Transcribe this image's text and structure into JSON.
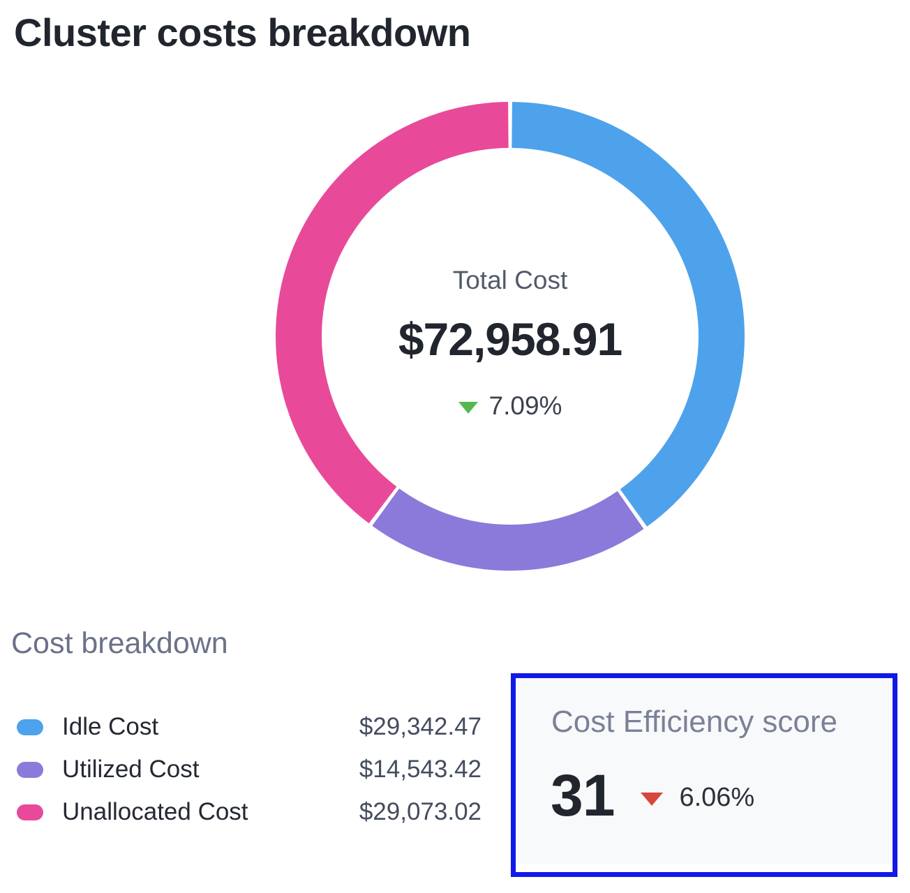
{
  "page": {
    "title": "Cluster costs breakdown",
    "background": "#ffffff"
  },
  "chart_data": {
    "type": "pie",
    "variant": "donut",
    "title": "Cluster costs breakdown",
    "legend_position": "bottom-left",
    "center": {
      "label": "Total Cost",
      "total_value": 72958.91,
      "total_display": "$72,958.91",
      "change": "7.09%",
      "change_direction": "down",
      "change_arrow_color": "#53B94E"
    },
    "segments": [
      {
        "label": "Idle Cost",
        "value": 29342.47,
        "display": "$29,342.47",
        "percent": 40.2,
        "color": "#4DA2EB"
      },
      {
        "label": "Utilized Cost",
        "value": 14543.42,
        "display": "$14,543.42",
        "percent": 19.9,
        "color": "#8B7AD9"
      },
      {
        "label": "Unallocated Cost",
        "value": 29073.02,
        "display": "$29,073.02",
        "percent": 39.9,
        "color": "#E84A99"
      }
    ]
  },
  "breakdown": {
    "heading": "Cost breakdown"
  },
  "efficiency": {
    "title": "Cost Efficiency score",
    "score": "31",
    "change": "6.06%",
    "change_direction": "down",
    "change_arrow_color": "#D6493A",
    "card_background": "#F8F9FA",
    "highlight_border_color": "#1119E8"
  }
}
